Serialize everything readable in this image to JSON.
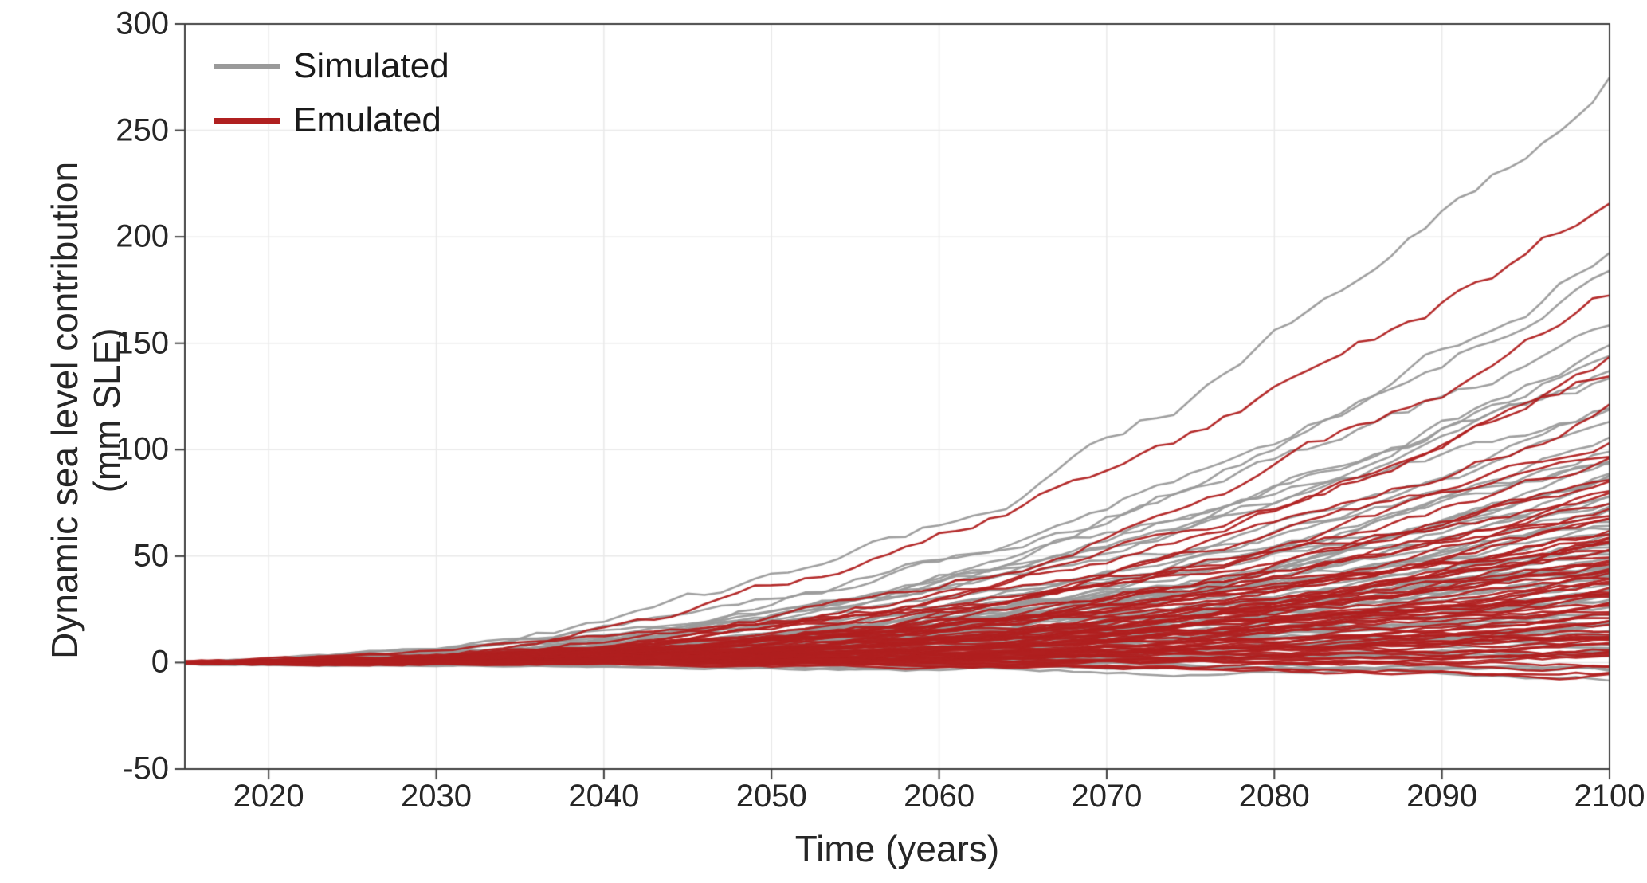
{
  "figure": {
    "xlabel": "Time (years)",
    "ylabel": "Dynamic sea level contribution\n(mm SLE)"
  },
  "chart_data": {
    "type": "line",
    "title": "",
    "xlabel": "Time (years)",
    "ylabel": "Dynamic sea level contribution (mm SLE)",
    "xlim": [
      2015,
      2100
    ],
    "ylim": [
      -50,
      300
    ],
    "xticks": [
      2020,
      2030,
      2040,
      2050,
      2060,
      2070,
      2080,
      2090,
      2100
    ],
    "yticks": [
      -50,
      0,
      50,
      100,
      150,
      200,
      250,
      300
    ],
    "grid": true,
    "grid_color": "#e9e9e9",
    "axis_color": "#3f3f3f",
    "legend_position": "top-left-inside",
    "legend": [
      {
        "label": "Simulated",
        "color": "#9a9a9a"
      },
      {
        "label": "Emulated",
        "color": "#b02020"
      }
    ],
    "description": "Ensemble of ice-sheet dynamic sea-level contribution trajectories, 2015-2100. Each series starts near 0 mm SLE in 2015 and grows roughly quadratically; values below are the estimated 2100 endpoints (mm SLE) of each trajectory read from the plot.",
    "x_start": 2015,
    "x_end": 2100,
    "ensembles": [
      {
        "name": "Simulated",
        "color": "#9a9a9a",
        "seed": 42,
        "shape_exponent_range": [
          1.7,
          2.7
        ],
        "endpoints_2100": [
          275,
          193,
          187,
          155,
          150,
          147,
          137,
          130,
          118,
          115,
          112,
          105,
          100,
          97,
          95,
          92,
          90,
          88,
          85,
          83,
          80,
          78,
          75,
          72,
          70,
          68,
          65,
          63,
          62,
          60,
          58,
          56,
          55,
          53,
          52,
          50,
          48,
          47,
          46,
          45,
          44,
          42,
          40,
          38,
          36,
          35,
          33,
          32,
          30,
          28,
          26,
          25,
          23,
          22,
          20,
          18,
          16,
          15,
          13,
          12,
          10,
          8,
          7,
          5,
          4,
          2,
          0,
          -2,
          -4,
          -6
        ]
      },
      {
        "name": "Emulated",
        "color": "#b02020",
        "seed": 7,
        "shape_exponent_range": [
          1.7,
          2.7
        ],
        "endpoints_2100": [
          220,
          170,
          140,
          137,
          120,
          105,
          103,
          95,
          88,
          85,
          80,
          78,
          75,
          72,
          70,
          68,
          66,
          64,
          62,
          60,
          58,
          57,
          55,
          54,
          52,
          50,
          49,
          47,
          46,
          44,
          43,
          42,
          40,
          39,
          38,
          36,
          35,
          34,
          32,
          31,
          30,
          29,
          28,
          26,
          25,
          24,
          23,
          22,
          20,
          19,
          18,
          17,
          16,
          15,
          14,
          13,
          12,
          10,
          9,
          8,
          7,
          6,
          5,
          4,
          3,
          2,
          0,
          -2,
          -4,
          -5
        ]
      }
    ]
  }
}
